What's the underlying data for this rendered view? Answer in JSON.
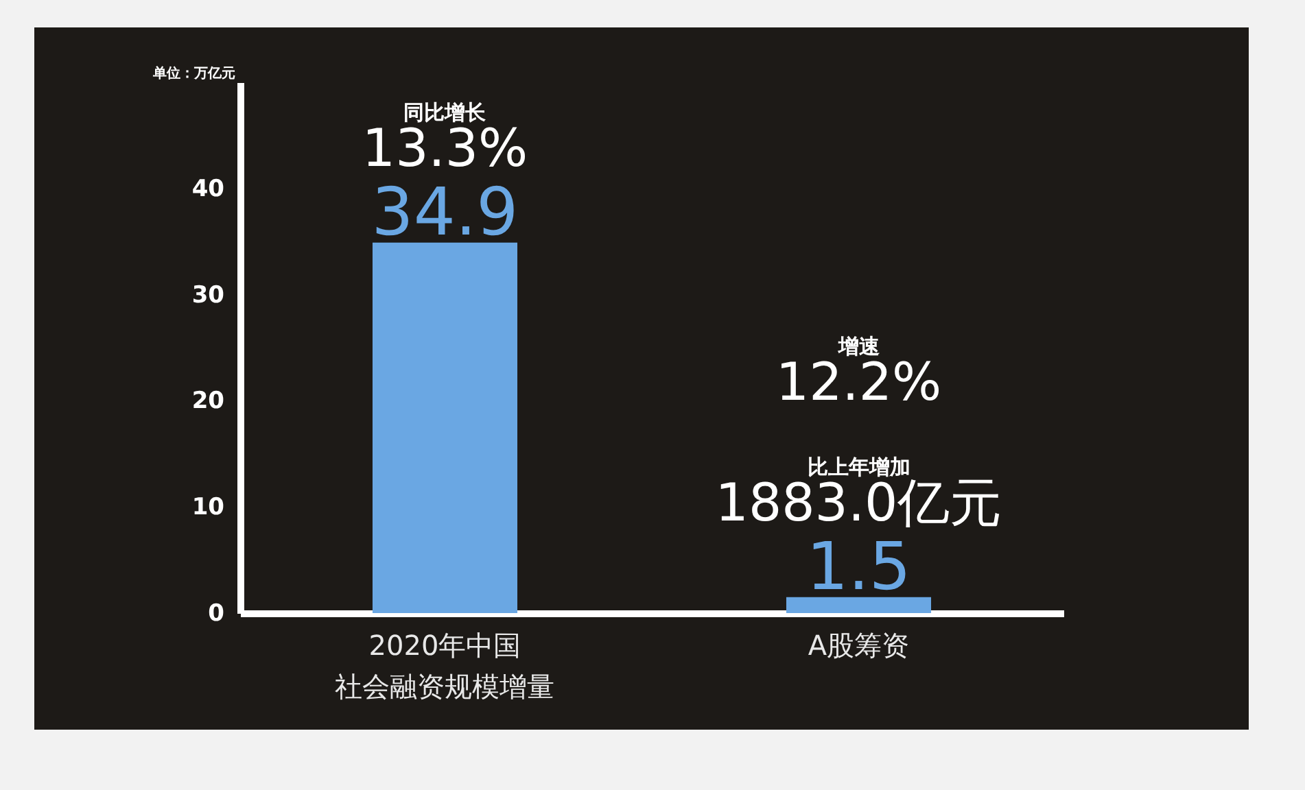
{
  "chart_data": {
    "type": "bar",
    "ylabel": "单位：万亿元",
    "categories": [
      "2020年中国社会融资规模增量",
      "A股筹资"
    ],
    "values": [
      34.9,
      1.5
    ],
    "color": "#6aa7e3",
    "ylim": [
      0,
      50
    ],
    "yticks": [
      0,
      10,
      20,
      30,
      40
    ],
    "grid": false,
    "data_labels": true,
    "annotations": [
      "同比增长",
      "13.3%",
      "增速",
      "12.2%",
      "比上年增加",
      "1883.0亿元"
    ]
  }
}
